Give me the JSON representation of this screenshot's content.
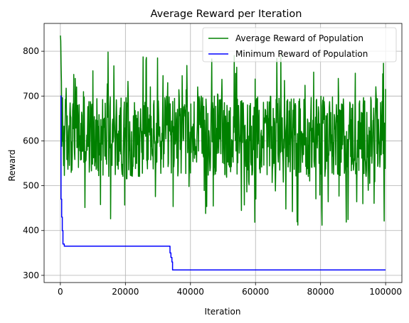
{
  "chart_data": {
    "type": "line",
    "title": "Average Reward per Iteration",
    "xlabel": "Iteration",
    "ylabel": "Reward",
    "xlim": [
      -5000,
      105000
    ],
    "ylim": [
      284,
      862
    ],
    "xticks": [
      0,
      20000,
      40000,
      60000,
      80000,
      100000
    ],
    "xtick_labels": [
      "0",
      "20000",
      "40000",
      "60000",
      "80000",
      "100000"
    ],
    "yticks": [
      300,
      400,
      500,
      600,
      700,
      800
    ],
    "ytick_labels": [
      "300",
      "400",
      "500",
      "600",
      "700",
      "800"
    ],
    "grid": true,
    "legend_position": "top-right",
    "series": [
      {
        "name": "Average Reward of Population",
        "color": "#008000",
        "kind": "noisy-band",
        "x_range": [
          0,
          100000
        ],
        "start_peak": 835,
        "mean": 610,
        "typical_range": [
          520,
          700
        ],
        "max": 798,
        "min": 412
      },
      {
        "name": "Minimum Reward of Population",
        "color": "#0000ff",
        "kind": "step",
        "x": [
          0,
          200,
          400,
          600,
          800,
          1200,
          2000,
          33500,
          33700,
          34000,
          34300,
          34500,
          100000
        ],
        "y": [
          700,
          470,
          430,
          400,
          370,
          365,
          365,
          365,
          350,
          340,
          330,
          312,
          312
        ]
      }
    ]
  }
}
